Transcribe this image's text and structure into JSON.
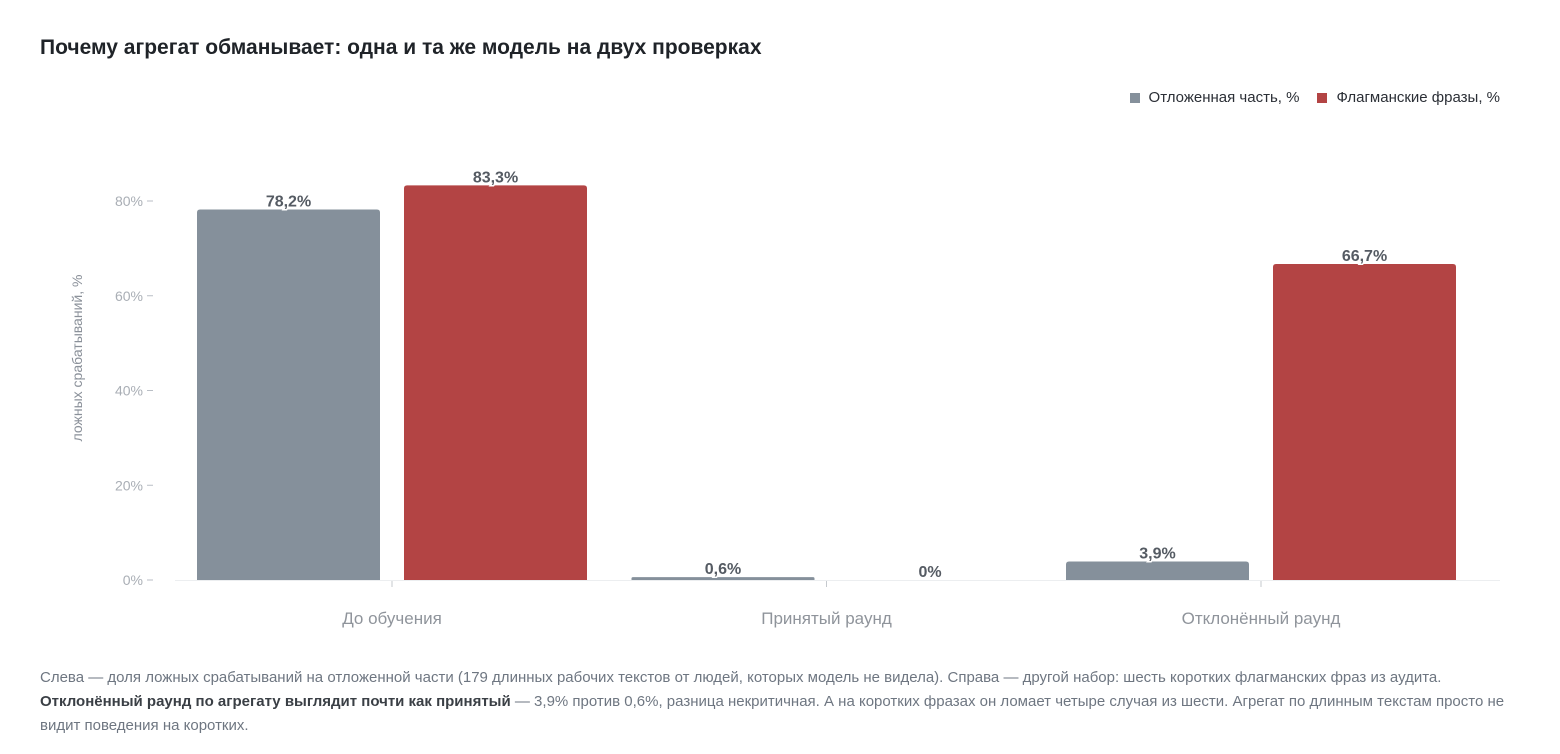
{
  "title": "Почему агрегат обманывает: одна и та же модель на двух проверках",
  "legend": [
    {
      "label": "Отложенная часть, %",
      "color": "#85909b"
    },
    {
      "label": "Флагманские фразы, %",
      "color": "#b34444"
    }
  ],
  "chart_data": {
    "type": "bar",
    "title": "Почему агрегат обманывает: одна и та же модель на двух проверках",
    "xlabel": "",
    "ylabel": "ложных срабатываний, %",
    "categories": [
      "До обучения",
      "Принятый раунд",
      "Отклонённый раунд"
    ],
    "series": [
      {
        "name": "Отложенная часть, %",
        "color": "#85909b",
        "values": [
          78.2,
          0.6,
          3.9
        ],
        "labels": [
          "78,2%",
          "0,6%",
          "3,9%"
        ]
      },
      {
        "name": "Флагманские фразы, %",
        "color": "#b34444",
        "values": [
          83.3,
          0,
          66.7
        ],
        "labels": [
          "83,3%",
          "0%",
          "66,7%"
        ]
      }
    ],
    "yticks": [
      0,
      20,
      40,
      60,
      80
    ],
    "ytick_labels": [
      "0%",
      "20%",
      "40%",
      "60%",
      "80%"
    ],
    "ylim": [
      0,
      80
    ],
    "grid": false,
    "legend_position": "top-right"
  },
  "caption": {
    "part1": "Слева — доля ложных срабатываний на отложенной части (179 длинных рабочих текстов от людей, которых модель не видела). Справа — другой набор: шесть коротких флагманских фраз из аудита. ",
    "bold": "Отклонённый раунд по агрегату выглядит почти как принятый",
    "part2": " — 3,9% против 0,6%, разница некритичная. А на коротких фразах он ломает четыре случая из шести. Агрегат по длинным текстам просто не видит поведения на коротких."
  }
}
